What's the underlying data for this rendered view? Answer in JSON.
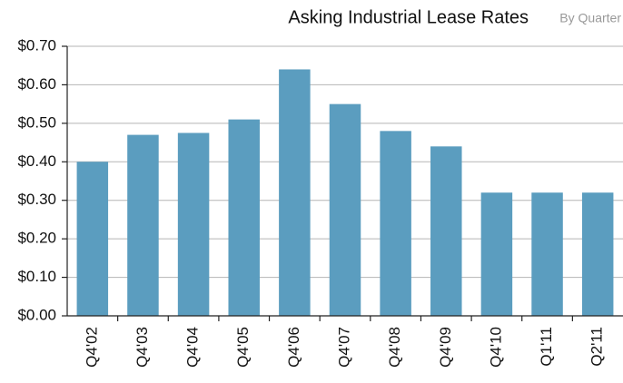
{
  "chart_data": {
    "type": "bar",
    "title": "Asking Industrial Lease Rates",
    "subtitle": "By Quarter",
    "categories": [
      "Q4'02",
      "Q4'03",
      "Q4'04",
      "Q4'05",
      "Q4'06",
      "Q4'07",
      "Q4'08",
      "Q4'09",
      "Q4'10",
      "Q1'11",
      "Q2'11"
    ],
    "values": [
      0.4,
      0.47,
      0.475,
      0.51,
      0.64,
      0.55,
      0.48,
      0.44,
      0.32,
      0.32,
      0.32
    ],
    "color": "#5b9dbf",
    "ylim": [
      0,
      0.7
    ],
    "yticks": [
      {
        "value": 0,
        "label": "$0.00"
      },
      {
        "value": 0.1,
        "label": "$0.10"
      },
      {
        "value": 0.2,
        "label": "$0.20"
      },
      {
        "value": 0.3,
        "label": "$0.30"
      },
      {
        "value": 0.4,
        "label": "$0.40"
      },
      {
        "value": 0.5,
        "label": "$0.50"
      },
      {
        "value": 0.6,
        "label": "$0.60"
      },
      {
        "value": 0.7,
        "label": "$0.70"
      }
    ],
    "grid": true
  }
}
